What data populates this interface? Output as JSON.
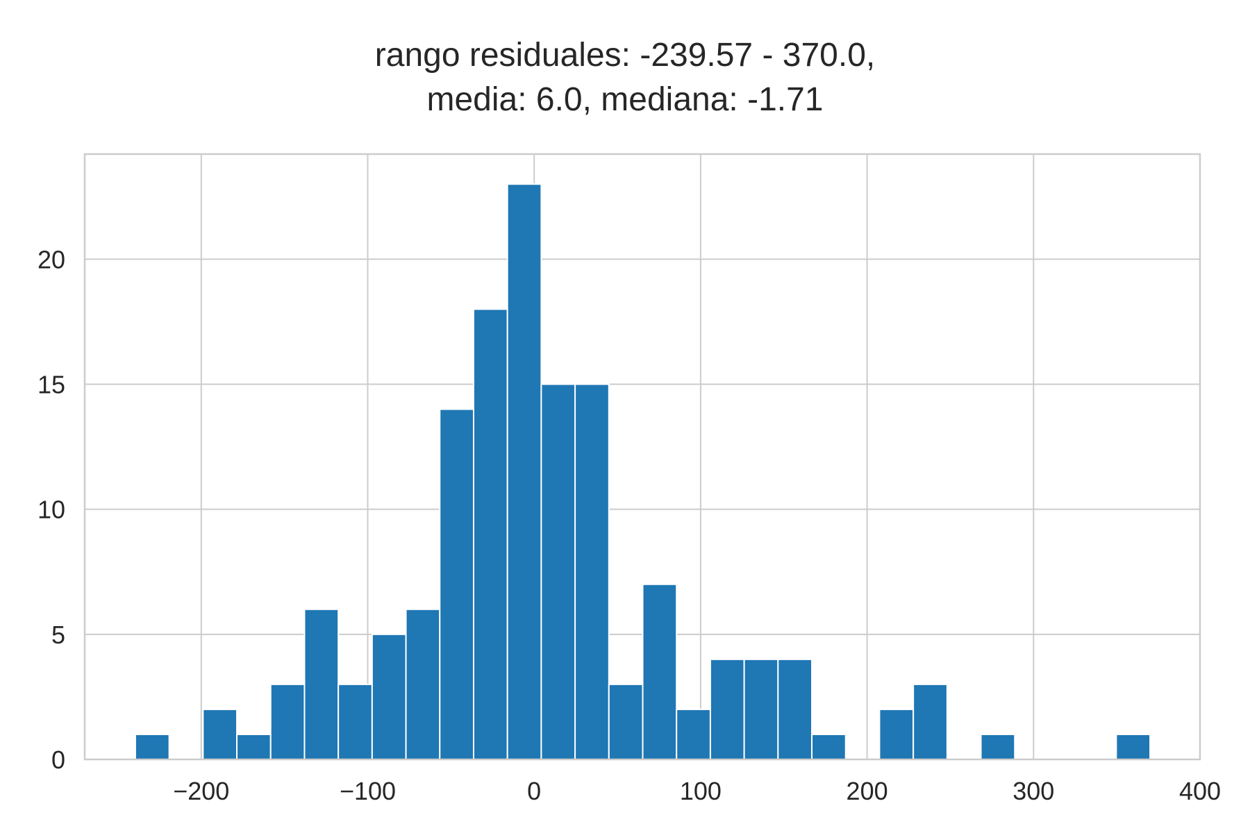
{
  "chart_data": {
    "type": "bar",
    "title_lines": [
      "rango residuales: -239.57 - 370.0,",
      "media: 6.0, mediana: -1.71"
    ],
    "xlabel": "",
    "ylabel": "",
    "xlim": [
      -270,
      400
    ],
    "ylim": [
      0,
      24.2
    ],
    "x_ticks": [
      -200,
      -100,
      0,
      100,
      200,
      300,
      400
    ],
    "x_tick_labels": [
      "−200",
      "−100",
      "0",
      "100",
      "200",
      "300",
      "400"
    ],
    "y_ticks": [
      0,
      5,
      10,
      15,
      20
    ],
    "y_tick_labels": [
      "0",
      "5",
      "10",
      "15",
      "20"
    ],
    "grid": true,
    "legend": "none",
    "bar_color": "#1f77b4",
    "grid_color": "#cccccc",
    "spine_color": "#cccccc",
    "bin_range": [
      -239.57,
      370.0
    ],
    "bins": 30,
    "counts": [
      1,
      0,
      2,
      1,
      3,
      6,
      3,
      5,
      6,
      14,
      18,
      23,
      15,
      15,
      3,
      7,
      2,
      4,
      4,
      4,
      1,
      0,
      2,
      3,
      0,
      1,
      0,
      0,
      0,
      1
    ]
  }
}
